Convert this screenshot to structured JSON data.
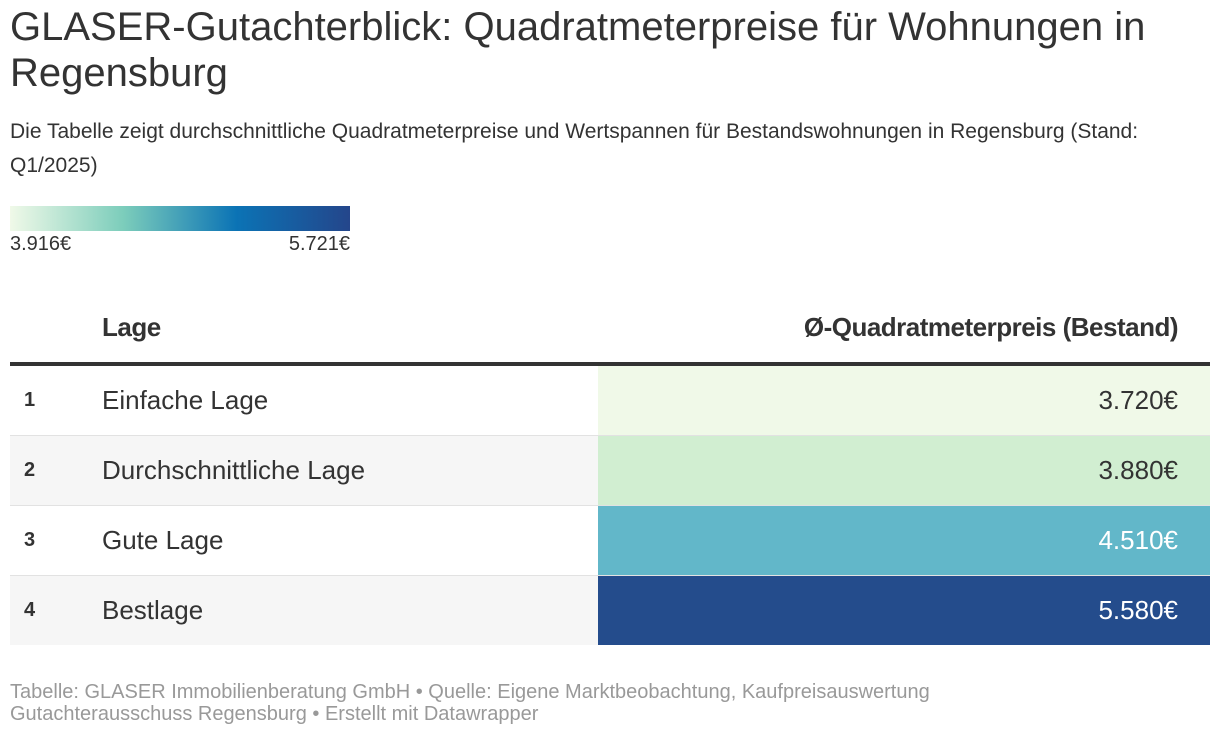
{
  "title": "GLASER-Gutachterblick: Quadratmeterpreise für Wohnungen in Regensburg",
  "subtitle": "Die Tabelle zeigt durchschnittliche Quadratmeterpreise und Wertspannen für Bestandswohnungen in Regensburg (Stand: Q1/2025)",
  "legend": {
    "min_label": "3.916€",
    "max_label": "5.721€",
    "min_value": 3916,
    "max_value": 5721,
    "colors": [
      "#f0f9e8",
      "#7ccdbb",
      "#0b73b5",
      "#24468b"
    ]
  },
  "table": {
    "headers": {
      "rank": "",
      "lage": "Lage",
      "price": "Ø-Quadratmeterpreis (Bestand)"
    },
    "rows": [
      {
        "rank": "1",
        "lage": "Einfache Lage",
        "price_label": "3.720€",
        "cell_color": "#f0f9e8",
        "text_color": "#333333"
      },
      {
        "rank": "2",
        "lage": "Durchschnittliche Lage",
        "price_label": "3.880€",
        "cell_color": "#d1eed1",
        "text_color": "#333333"
      },
      {
        "rank": "3",
        "lage": "Gute Lage",
        "price_label": "4.510€",
        "cell_color": "#62b7c9",
        "text_color": "#ffffff"
      },
      {
        "rank": "4",
        "lage": "Bestlage",
        "price_label": "5.580€",
        "cell_color": "#244c8c",
        "text_color": "#ffffff"
      }
    ]
  },
  "chart_data": {
    "type": "table",
    "title": "GLASER-Gutachterblick: Quadratmeterpreise für Wohnungen in Regensburg",
    "columns": [
      "",
      "Lage",
      "Ø-Quadratmeterpreis (Bestand)"
    ],
    "categories": [
      "Einfache Lage",
      "Durchschnittliche Lage",
      "Gute Lage",
      "Bestlage"
    ],
    "values": [
      3720,
      3880,
      4510,
      5580
    ],
    "color_scale": {
      "min": 3916,
      "max": 5721
    }
  },
  "footer": {
    "line1": "Tabelle: GLASER Immobilienberatung GmbH • Quelle: Eigene Marktbeobachtung, Kaufpreisauswertung",
    "line2": "Gutachterausschuss Regensburg • Erstellt mit Datawrapper"
  }
}
